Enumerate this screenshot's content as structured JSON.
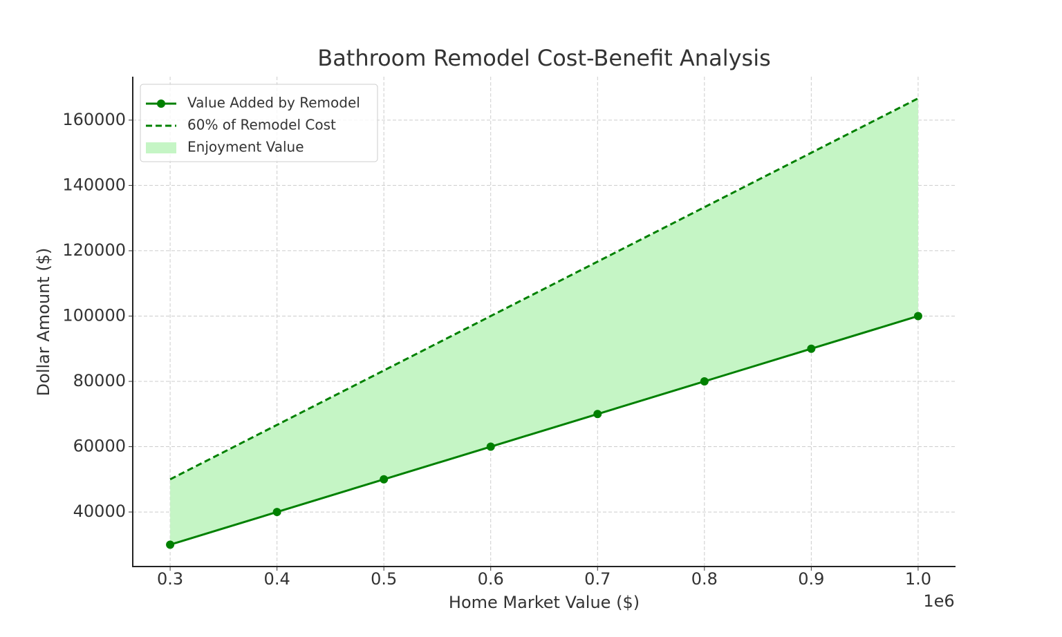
{
  "chart_data": {
    "type": "line",
    "title": "Bathroom Remodel Cost-Benefit Analysis",
    "xlabel": "Home Market Value ($)",
    "ylabel": "Dollar Amount ($)",
    "x_offset_label": "1e6",
    "x": [
      300000,
      400000,
      500000,
      600000,
      700000,
      800000,
      900000,
      1000000
    ],
    "series": [
      {
        "name": "Value Added by Remodel",
        "color": "#008000",
        "style": "solid",
        "marker": true,
        "values": [
          30000,
          40000,
          50000,
          60000,
          70000,
          80000,
          90000,
          100000
        ]
      },
      {
        "name": "60% of Remodel Cost",
        "color": "#008000",
        "style": "dashed",
        "marker": false,
        "values": [
          50000,
          66667,
          83333,
          100000,
          116667,
          133333,
          150000,
          166667
        ]
      }
    ],
    "fill": {
      "name": "Enjoyment Value",
      "color": "#c5f5c5",
      "between": [
        1,
        0
      ]
    },
    "xlim": [
      265000,
      1035000
    ],
    "ylim": [
      23300,
      173300
    ],
    "xticks": [
      {
        "value": 300000,
        "label": "0.3"
      },
      {
        "value": 400000,
        "label": "0.4"
      },
      {
        "value": 500000,
        "label": "0.5"
      },
      {
        "value": 600000,
        "label": "0.6"
      },
      {
        "value": 700000,
        "label": "0.7"
      },
      {
        "value": 800000,
        "label": "0.8"
      },
      {
        "value": 900000,
        "label": "0.9"
      },
      {
        "value": 1000000,
        "label": "1.0"
      }
    ],
    "yticks": [
      40000,
      60000,
      80000,
      100000,
      120000,
      140000,
      160000
    ],
    "grid": true,
    "legend": "upper-left"
  }
}
